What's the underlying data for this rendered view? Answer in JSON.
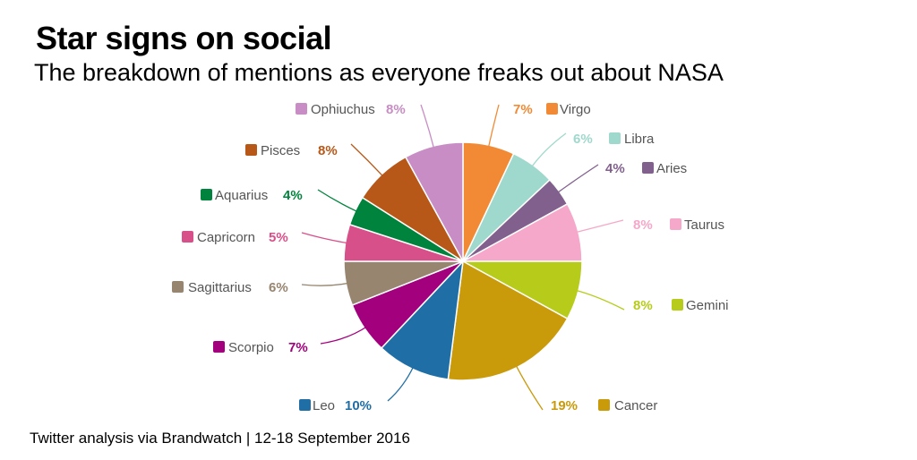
{
  "chart_data": {
    "type": "pie",
    "title": "Star signs on social",
    "subtitle": "The breakdown of mentions as everyone freaks out about NASA",
    "source": "Twitter analysis via Brandwatch | 12-18 September 2016",
    "legend": "labels beside slices",
    "slices": [
      {
        "label": "Virgo",
        "value": 7,
        "pct_label": "7%",
        "color": "#f28a35"
      },
      {
        "label": "Libra",
        "value": 6,
        "pct_label": "6%",
        "color": "#9fd8cc"
      },
      {
        "label": "Aries",
        "value": 4,
        "pct_label": "4%",
        "color": "#82608e"
      },
      {
        "label": "Taurus",
        "value": 8,
        "pct_label": "8%",
        "color": "#f5a8c9"
      },
      {
        "label": "Gemini",
        "value": 8,
        "pct_label": "8%",
        "color": "#b7cc1a"
      },
      {
        "label": "Cancer",
        "value": 19,
        "pct_label": "19%",
        "color": "#c99a0a"
      },
      {
        "label": "Leo",
        "value": 10,
        "pct_label": "10%",
        "color": "#1f6fa6"
      },
      {
        "label": "Scorpio",
        "value": 7,
        "pct_label": "7%",
        "color": "#a3007e"
      },
      {
        "label": "Sagittarius",
        "value": 6,
        "pct_label": "6%",
        "color": "#978570"
      },
      {
        "label": "Capricorn",
        "value": 5,
        "pct_label": "5%",
        "color": "#d8508a"
      },
      {
        "label": "Aquarius",
        "value": 4,
        "pct_label": "4%",
        "color": "#00843d"
      },
      {
        "label": "Pisces",
        "value": 8,
        "pct_label": "8%",
        "color": "#b85818"
      },
      {
        "label": "Ophiuchus",
        "value": 8,
        "pct_label": "8%",
        "color": "#c88dc4"
      }
    ]
  }
}
